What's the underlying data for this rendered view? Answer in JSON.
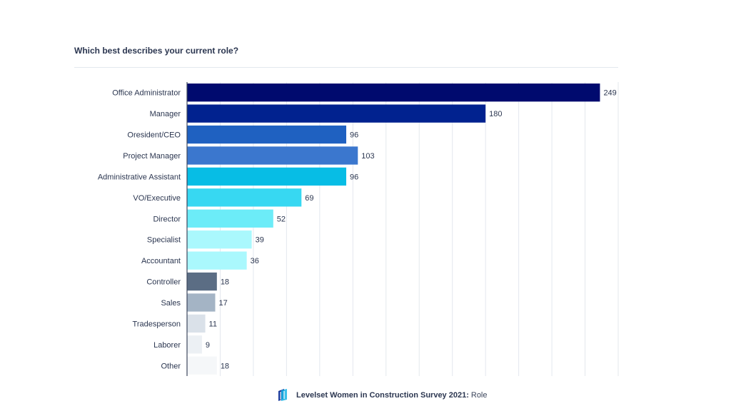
{
  "chart_data": {
    "type": "bar",
    "orientation": "horizontal",
    "title": "Which best describes your current role?",
    "xlabel": "",
    "ylabel": "",
    "xlim": [
      0,
      260
    ],
    "x_grid_step": 20,
    "grid": true,
    "legend": "none",
    "categories": [
      "Office Administrator",
      "Manager",
      "Oresident/CEO",
      "Project Manager",
      "Administrative Assistant",
      "VO/Executive",
      "Director",
      "Specialist",
      "Accountant",
      "Controller",
      "Sales",
      "Tradesperson",
      "Laborer",
      "Other"
    ],
    "values": [
      249,
      180,
      96,
      103,
      96,
      69,
      52,
      39,
      36,
      18,
      17,
      11,
      9,
      18
    ],
    "data_labels": [
      "249",
      "180",
      "96",
      "103",
      "96",
      "69",
      "52",
      "39",
      "36",
      "18",
      "17",
      "11",
      "9",
      "18"
    ],
    "colors": [
      "#000a6e",
      "#01228f",
      "#1f61c1",
      "#3b77ce",
      "#07bde5",
      "#37d8f2",
      "#6cecf8",
      "#aaf8fd",
      "#aaf8fd",
      "#5b6d84",
      "#a4b4c5",
      "#dae1e9",
      "#ecf0f4",
      "#f5f7f9"
    ]
  },
  "footer": {
    "source": "Levelset Women in Construction Survey 2021:",
    "topic": "Role",
    "logo_icon": "levelset-logo"
  },
  "style": {
    "text_color": "#2b3650",
    "grid_color": "#e3e8ee",
    "axis_color": "#3c465c"
  }
}
